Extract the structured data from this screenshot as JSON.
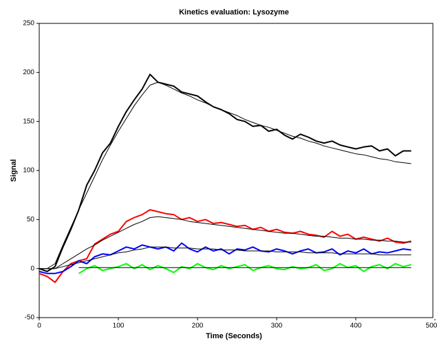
{
  "chart_data": {
    "type": "line",
    "title": "Kinetics evaluation: Lysozyme",
    "x_label": "Time (Seconds)",
    "y_label": "Signal",
    "xlim": [
      0,
      500
    ],
    "ylim": [
      -50,
      250
    ],
    "xticks": [
      0,
      100,
      200,
      300,
      400,
      500
    ],
    "yticks": [
      -50,
      0,
      50,
      100,
      150,
      200,
      250
    ],
    "grid": false,
    "x": [
      0,
      10,
      20,
      30,
      40,
      50,
      60,
      70,
      80,
      90,
      100,
      110,
      120,
      130,
      140,
      150,
      160,
      170,
      180,
      190,
      200,
      210,
      220,
      230,
      240,
      250,
      260,
      270,
      280,
      290,
      300,
      310,
      320,
      330,
      340,
      350,
      360,
      370,
      380,
      390,
      400,
      410,
      420,
      430,
      440,
      450,
      460,
      470
    ],
    "series": [
      {
        "color": "#000000",
        "line_width": 2,
        "values": [
          0,
          -3,
          2,
          22,
          40,
          60,
          85,
          100,
          118,
          128,
          145,
          160,
          172,
          183,
          198,
          190,
          188,
          186,
          180,
          178,
          176,
          170,
          165,
          162,
          158,
          152,
          150,
          145,
          146,
          140,
          142,
          136,
          132,
          137,
          134,
          130,
          128,
          130,
          126,
          124,
          122,
          124,
          125,
          120,
          122,
          115,
          120,
          120
        ]
      },
      {
        "color": "#ff0000",
        "line_width": 2,
        "values": [
          -5,
          -8,
          -14,
          -3,
          5,
          8,
          10,
          25,
          30,
          35,
          38,
          48,
          52,
          55,
          60,
          58,
          56,
          55,
          50,
          52,
          48,
          50,
          46,
          47,
          45,
          43,
          44,
          40,
          42,
          38,
          40,
          37,
          36,
          38,
          35,
          34,
          32,
          38,
          33,
          35,
          30,
          32,
          30,
          28,
          31,
          27,
          26,
          28
        ]
      },
      {
        "color": "#0000ff",
        "line_width": 2,
        "values": [
          -3,
          -5,
          -5,
          -3,
          2,
          8,
          5,
          12,
          15,
          14,
          18,
          22,
          20,
          24,
          22,
          20,
          22,
          18,
          26,
          20,
          17,
          22,
          18,
          20,
          15,
          20,
          19,
          22,
          18,
          17,
          20,
          18,
          15,
          18,
          20,
          16,
          17,
          20,
          14,
          18,
          16,
          20,
          15,
          17,
          16,
          18,
          20,
          19
        ]
      },
      {
        "color": "#00ff00",
        "line_width": 2,
        "values": [
          null,
          null,
          null,
          null,
          null,
          -5,
          0,
          3,
          -2,
          0,
          2,
          5,
          0,
          4,
          -1,
          3,
          0,
          -4,
          2,
          0,
          5,
          1,
          -1,
          3,
          0,
          2,
          4,
          -2,
          1,
          3,
          0,
          -1,
          2,
          0,
          1,
          4,
          -2,
          0,
          5,
          1,
          3,
          -3,
          2,
          4,
          0,
          5,
          2,
          4
        ]
      },
      {
        "color": "#000000",
        "line_width": 1,
        "values": [
          0,
          0,
          5,
          24,
          42,
          60,
          77,
          94,
          111,
          126,
          140,
          153,
          166,
          177,
          187,
          190,
          187,
          183,
          179,
          176,
          172,
          169,
          165,
          162,
          159,
          156,
          152,
          149,
          146,
          144,
          141,
          138,
          135,
          133,
          130,
          128,
          125,
          123,
          121,
          119,
          117,
          116,
          114,
          112,
          111,
          109,
          108,
          107
        ]
      },
      {
        "color": "#000000",
        "line_width": 1,
        "values": [
          0,
          0,
          0,
          5,
          10,
          15,
          20,
          24,
          29,
          33,
          37,
          41,
          45,
          48,
          52,
          53,
          52,
          51,
          50,
          48,
          47,
          46,
          45,
          44,
          43,
          42,
          41,
          40,
          39,
          38,
          37,
          36,
          36,
          35,
          34,
          33,
          33,
          32,
          31,
          31,
          30,
          30,
          29,
          29,
          28,
          28,
          27,
          27
        ]
      },
      {
        "color": "#000000",
        "line_width": 1,
        "values": [
          0,
          0,
          0,
          2,
          4,
          6,
          8,
          10,
          12,
          14,
          16,
          17,
          19,
          20,
          22,
          22,
          22,
          21,
          21,
          21,
          20,
          20,
          20,
          19,
          19,
          19,
          18,
          18,
          18,
          18,
          17,
          17,
          17,
          17,
          16,
          16,
          16,
          16,
          15,
          15,
          15,
          15,
          15,
          14,
          14,
          14,
          14,
          14
        ]
      },
      {
        "color": "#000000",
        "line_width": 1,
        "values": [
          null,
          null,
          null,
          null,
          null,
          1,
          1,
          1,
          1,
          1,
          1,
          1,
          1,
          1,
          1,
          1,
          1,
          1,
          1,
          1,
          1,
          1,
          1,
          1,
          1,
          1,
          1,
          1,
          1,
          1,
          1,
          1,
          1,
          1,
          1,
          1,
          1,
          1,
          1,
          1,
          1,
          1,
          1,
          1,
          1,
          1,
          1,
          1
        ]
      }
    ]
  }
}
